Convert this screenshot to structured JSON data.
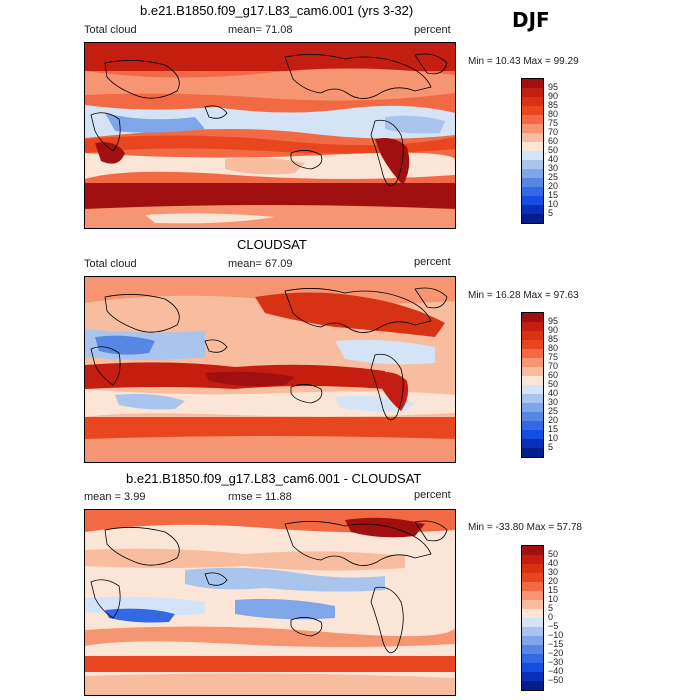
{
  "season": "DJF",
  "panels": [
    {
      "id": "model",
      "title": "b.e21.B1850.f09_g17.L83_cam6.001 (yrs 3-32)",
      "left_label": "Total cloud",
      "mid_label": "mean=  71.08",
      "right_label": "percent",
      "minmax": "Min =  10.43  Max =  99.29",
      "levels": [
        "95",
        "90",
        "85",
        "80",
        "75",
        "70",
        "60",
        "50",
        "40",
        "30",
        "25",
        "20",
        "15",
        "10",
        "5"
      ],
      "colors": [
        "#a01010",
        "#c41e10",
        "#d83214",
        "#e8461f",
        "#f16a43",
        "#f59571",
        "#f8bc9e",
        "#fbe5d6",
        "#d4e4f6",
        "#a9c5ee",
        "#7fa6e8",
        "#5787e4",
        "#3469e6",
        "#154ce2",
        "#0a2fb8",
        "#031d8a"
      ]
    },
    {
      "id": "obs",
      "title": "CLOUDSAT",
      "left_label": "Total cloud",
      "mid_label": "mean=  67.09",
      "right_label": "percent",
      "minmax": "Min =  16.28  Max =  97.63",
      "levels": [
        "95",
        "90",
        "85",
        "80",
        "75",
        "70",
        "60",
        "50",
        "40",
        "30",
        "25",
        "20",
        "15",
        "10",
        "5"
      ],
      "colors": [
        "#a01010",
        "#c41e10",
        "#d83214",
        "#e8461f",
        "#f16a43",
        "#f59571",
        "#f8bc9e",
        "#fbe5d6",
        "#d4e4f6",
        "#a9c5ee",
        "#7fa6e8",
        "#5787e4",
        "#3469e6",
        "#154ce2",
        "#0a2fb8",
        "#031d8a"
      ]
    },
    {
      "id": "diff",
      "title": "b.e21.B1850.f09_g17.L83_cam6.001 - CLOUDSAT",
      "left_label": "mean =   3.99",
      "mid_label": "rmse =  11.88",
      "right_label": "percent",
      "minmax": "Min = -33.80  Max =  57.78",
      "levels": [
        "50",
        "40",
        "30",
        "20",
        "15",
        "10",
        "5",
        "0",
        "−5",
        "−10",
        "−15",
        "−20",
        "−30",
        "−40",
        "−50"
      ],
      "colors": [
        "#a01010",
        "#c41e10",
        "#d83214",
        "#e8461f",
        "#f16a43",
        "#f59571",
        "#f8bc9e",
        "#fbe5d6",
        "#d4e4f6",
        "#a9c5ee",
        "#7fa6e8",
        "#5787e4",
        "#3469e6",
        "#154ce2",
        "#0a2fb8",
        "#031d8a"
      ]
    }
  ]
}
